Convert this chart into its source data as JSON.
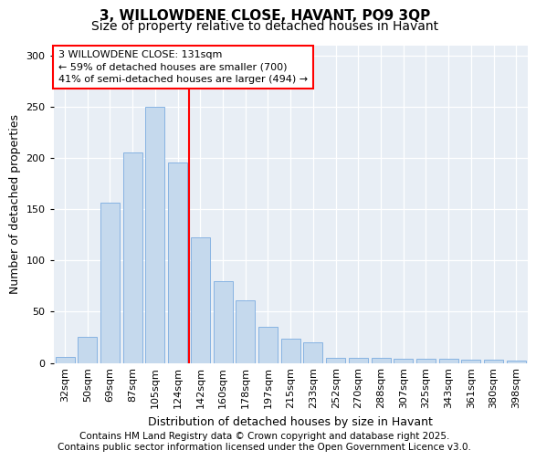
{
  "title": "3, WILLOWDENE CLOSE, HAVANT, PO9 3QP",
  "subtitle": "Size of property relative to detached houses in Havant",
  "xlabel": "Distribution of detached houses by size in Havant",
  "ylabel": "Number of detached properties",
  "categories": [
    "32sqm",
    "50sqm",
    "69sqm",
    "87sqm",
    "105sqm",
    "124sqm",
    "142sqm",
    "160sqm",
    "178sqm",
    "197sqm",
    "215sqm",
    "233sqm",
    "252sqm",
    "270sqm",
    "288sqm",
    "307sqm",
    "325sqm",
    "343sqm",
    "361sqm",
    "380sqm",
    "398sqm"
  ],
  "bar_heights": [
    6,
    25,
    157,
    206,
    250,
    196,
    123,
    80,
    61,
    35,
    24,
    20,
    5,
    5,
    5,
    4,
    4,
    4,
    3,
    3,
    2
  ],
  "bar_color": "#c5d9ed",
  "bar_edge_color": "#7aabe0",
  "vline_x": 5.5,
  "vline_color": "red",
  "annotation_text": "3 WILLOWDENE CLOSE: 131sqm\n← 59% of detached houses are smaller (700)\n41% of semi-detached houses are larger (494) →",
  "annotation_box_color": "white",
  "annotation_box_edge": "red",
  "ylim": [
    0,
    310
  ],
  "yticks": [
    0,
    50,
    100,
    150,
    200,
    250,
    300
  ],
  "bg_color": "#ffffff",
  "plot_bg_color": "#e8eef5",
  "footer": "Contains HM Land Registry data © Crown copyright and database right 2025.\nContains public sector information licensed under the Open Government Licence v3.0.",
  "title_fontsize": 11,
  "subtitle_fontsize": 10,
  "xlabel_fontsize": 9,
  "ylabel_fontsize": 9,
  "tick_fontsize": 8,
  "footer_fontsize": 7.5,
  "ann_fontsize": 8
}
